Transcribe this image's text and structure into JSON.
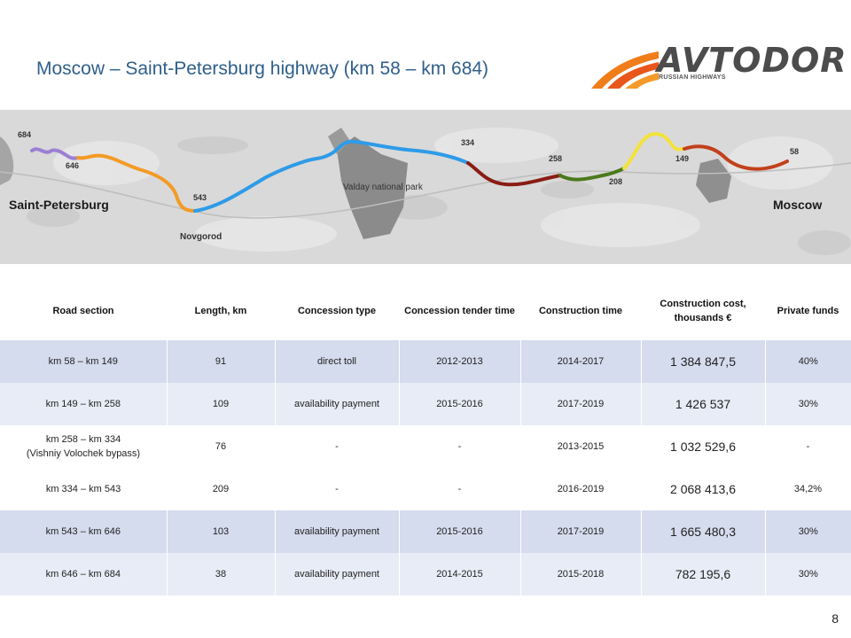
{
  "title": "Moscow – Saint-Petersburg highway (km 58 – km 684)",
  "logo": {
    "word": "AVTODOR",
    "sub": "RUSSIAN HIGHWAYS"
  },
  "map": {
    "markers": [
      "684",
      "646",
      "543",
      "334",
      "258",
      "208",
      "149",
      "58"
    ],
    "cities": {
      "left": "Saint-Petersburg",
      "right": "Moscow",
      "novgorod": "Novgorod"
    },
    "park": "Valday national park",
    "colors": {
      "purple": "#9b7fd4",
      "orange": "#f39b26",
      "blue": "#2e9be8",
      "darkred": "#8a1c14",
      "green": "#4b7a1c",
      "yellow": "#f3e23a",
      "red": "#c2401c"
    }
  },
  "table": {
    "headers": [
      "Road section",
      "Length, km",
      "Concession type",
      "Concession tender time",
      "Construction time",
      "Construction cost, thousands €",
      "Private funds"
    ],
    "rows": [
      {
        "section": "km 58 – km 149",
        "section2": "",
        "length": "91",
        "type": "direct toll",
        "tender": "2012-2013",
        "construction": "2014-2017",
        "cost": "1 384 847,5",
        "funds": "40%"
      },
      {
        "section": "km 149 – km 258",
        "section2": "",
        "length": "109",
        "type": "availability payment",
        "tender": "2015-2016",
        "construction": "2017-2019",
        "cost": "1 426 537",
        "funds": "30%"
      },
      {
        "section": "km 258 – km 334",
        "section2": "(Vishniy Volochek bypass)",
        "length": "76",
        "type": "-",
        "tender": "-",
        "construction": "2013-2015",
        "cost": "1 032 529,6",
        "funds": "-"
      },
      {
        "section": "km 334 – km 543",
        "section2": "",
        "length": "209",
        "type": "-",
        "tender": "-",
        "construction": "2016-2019",
        "cost": "2 068 413,6",
        "funds": "34,2%"
      },
      {
        "section": "km 543 – km 646",
        "section2": "",
        "length": "103",
        "type": "availability payment",
        "tender": "2015-2016",
        "construction": "2017-2019",
        "cost": "1 665 480,3",
        "funds": "30%"
      },
      {
        "section": "km 646 – km 684",
        "section2": "",
        "length": "38",
        "type": "availability payment",
        "tender": "2014-2015",
        "construction": "2015-2018",
        "cost": "782 195,6",
        "funds": "30%"
      }
    ]
  },
  "page_number": "8"
}
